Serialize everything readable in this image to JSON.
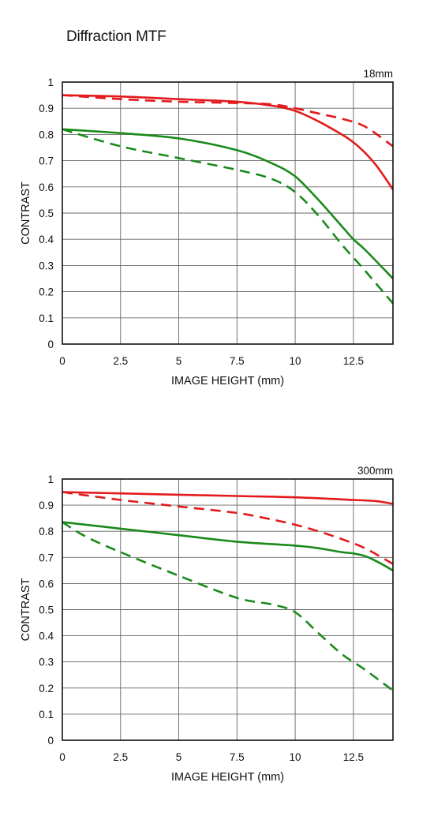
{
  "title": "Diffraction MTF",
  "colors": {
    "red": "#e31a1c",
    "green": "#1a8a1a",
    "grid": "#666666",
    "frame": "#111111"
  },
  "chart_data": [
    {
      "type": "line",
      "label": "18mm",
      "xlabel": "IMAGE HEIGHT (mm)",
      "ylabel": "CONTRAST",
      "xlim": [
        0,
        14.2
      ],
      "ylim": [
        0,
        1
      ],
      "xticks": [
        0,
        2.5,
        5,
        7.5,
        10,
        12.5
      ],
      "xtick_labels": [
        "0",
        "2.5",
        "5",
        "7.5",
        "10",
        "12.5"
      ],
      "yticks": [
        0,
        0.1,
        0.2,
        0.3,
        0.4,
        0.5,
        0.6,
        0.7,
        0.8,
        0.9,
        1
      ],
      "ytick_labels": [
        "0",
        "0.1",
        "0.2",
        "0.3",
        "0.4",
        "0.5",
        "0.6",
        "0.7",
        "0.8",
        "0.9",
        "1"
      ],
      "grid": true,
      "series": [
        {
          "color": "red",
          "style": "solid",
          "x": [
            0,
            2.5,
            5,
            7.5,
            9,
            10,
            11,
            12,
            12.5,
            13,
            13.5,
            14.2
          ],
          "y": [
            0.95,
            0.945,
            0.935,
            0.925,
            0.91,
            0.89,
            0.85,
            0.8,
            0.77,
            0.73,
            0.68,
            0.59
          ]
        },
        {
          "color": "red",
          "style": "dashed",
          "x": [
            0,
            2.5,
            5,
            7.5,
            9,
            10,
            11,
            12,
            13,
            14.2
          ],
          "y": [
            0.95,
            0.935,
            0.925,
            0.92,
            0.915,
            0.9,
            0.88,
            0.86,
            0.83,
            0.755
          ]
        },
        {
          "color": "green",
          "style": "solid",
          "x": [
            0,
            2.5,
            5,
            7.5,
            9,
            10,
            11,
            12,
            12.5,
            13,
            14.2
          ],
          "y": [
            0.82,
            0.805,
            0.785,
            0.74,
            0.69,
            0.64,
            0.55,
            0.45,
            0.4,
            0.36,
            0.25
          ]
        },
        {
          "color": "green",
          "style": "dashed",
          "x": [
            0,
            2.5,
            5,
            7.5,
            9,
            10,
            11,
            12,
            12.5,
            13,
            14.2
          ],
          "y": [
            0.82,
            0.755,
            0.71,
            0.665,
            0.63,
            0.58,
            0.49,
            0.38,
            0.33,
            0.28,
            0.155
          ]
        }
      ]
    },
    {
      "type": "line",
      "label": "300mm",
      "xlabel": "IMAGE HEIGHT (mm)",
      "ylabel": "CONTRAST",
      "xlim": [
        0,
        14.2
      ],
      "ylim": [
        0,
        1
      ],
      "xticks": [
        0,
        2.5,
        5,
        7.5,
        10,
        12.5
      ],
      "xtick_labels": [
        "0",
        "2.5",
        "5",
        "7.5",
        "10",
        "12.5"
      ],
      "yticks": [
        0,
        0.1,
        0.2,
        0.3,
        0.4,
        0.5,
        0.6,
        0.7,
        0.8,
        0.9,
        1
      ],
      "ytick_labels": [
        "0",
        "0.1",
        "0.2",
        "0.3",
        "0.4",
        "0.5",
        "0.6",
        "0.7",
        "0.8",
        "0.9",
        "1"
      ],
      "grid": true,
      "series": [
        {
          "color": "red",
          "style": "solid",
          "x": [
            0,
            2.5,
            5,
            7.5,
            10,
            12.5,
            13.5,
            14.2
          ],
          "y": [
            0.95,
            0.945,
            0.94,
            0.935,
            0.93,
            0.92,
            0.915,
            0.905
          ]
        },
        {
          "color": "red",
          "style": "dashed",
          "x": [
            0,
            2.5,
            5,
            7.5,
            9,
            10,
            11,
            12,
            13,
            14.2
          ],
          "y": [
            0.95,
            0.92,
            0.895,
            0.87,
            0.845,
            0.825,
            0.8,
            0.77,
            0.735,
            0.675
          ]
        },
        {
          "color": "green",
          "style": "solid",
          "x": [
            0,
            2.5,
            5,
            7.5,
            10,
            11,
            12,
            12.5,
            13,
            13.5,
            14.2
          ],
          "y": [
            0.835,
            0.81,
            0.785,
            0.76,
            0.745,
            0.735,
            0.72,
            0.715,
            0.705,
            0.685,
            0.65
          ]
        },
        {
          "color": "green",
          "style": "dashed",
          "x": [
            0,
            1,
            2.5,
            5,
            7.5,
            9,
            10,
            11,
            12,
            13,
            14.2
          ],
          "y": [
            0.835,
            0.78,
            0.72,
            0.63,
            0.545,
            0.52,
            0.49,
            0.41,
            0.33,
            0.27,
            0.19
          ]
        }
      ]
    }
  ]
}
